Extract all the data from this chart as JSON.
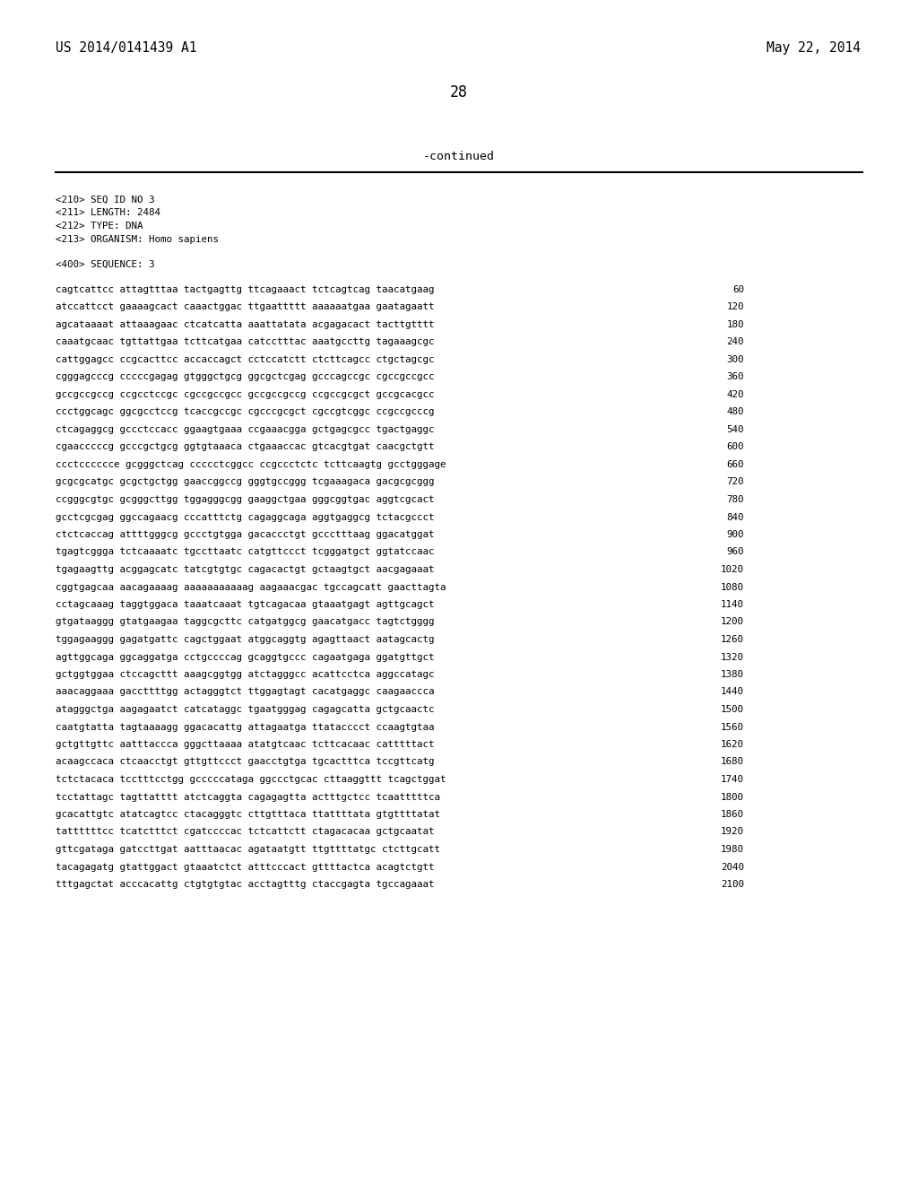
{
  "header_left": "US 2014/0141439 A1",
  "header_right": "May 22, 2014",
  "page_number": "28",
  "continued_text": "-continued",
  "metadata": [
    "<210> SEQ ID NO 3",
    "<211> LENGTH: 2484",
    "<212> TYPE: DNA",
    "<213> ORGANISM: Homo sapiens"
  ],
  "sequence_label": "<400> SEQUENCE: 3",
  "sequence_lines": [
    [
      "cagtcattcc attagtttaa tactgagttg ttcagaaact tctcagtcag taacatgaag",
      "60"
    ],
    [
      "atccattcct gaaaagcact caaactggac ttgaattttt aaaaaatgaa gaatagaatt",
      "120"
    ],
    [
      "agcataaaat attaaagaac ctcatcatta aaattatata acgagacact tacttgtttt",
      "180"
    ],
    [
      "caaatgcaac tgttattgaa tcttcatgaa catcctttac aaatgccttg tagaaagcgc",
      "240"
    ],
    [
      "cattggagcc ccgcacttcc accaccagct cctccatctt ctcttcagcc ctgctagcgc",
      "300"
    ],
    [
      "cgggagcccg cccccgagag gtgggctgcg ggcgctcgag gcccagccgc cgccgccgcc",
      "360"
    ],
    [
      "gccgccgccg ccgcctccgc cgccgccgcc gccgccgccg ccgccgcgct gccgcacgcc",
      "420"
    ],
    [
      "ccctggcagc ggcgcctccg tcaccgccgc cgcccgcgct cgccgtcggc ccgccgcccg",
      "480"
    ],
    [
      "ctcagaggcg gccctccacc ggaagtgaaa ccgaaacgga gctgagcgcc tgactgaggc",
      "540"
    ],
    [
      "cgaacccccg gcccgctgcg ggtgtaaaca ctgaaaccac gtcacgtgat caacgctgtt",
      "600"
    ],
    [
      "ccctcccccce gcgggctcag ccccctcggcc ccgccctctc tcttcaagtg gcctgggage",
      "660"
    ],
    [
      "gcgcgcatgc gcgctgctgg gaaccggccg gggtgccggg tcgaaagaca gacgcgcggg",
      "720"
    ],
    [
      "ccgggcgtgc gcgggcttgg tggagggcgg gaaggctgaa gggcggtgac aggtcgcact",
      "780"
    ],
    [
      "gcctcgcgag ggccagaacg cccatttctg cagaggcaga aggtgaggcg tctacgccct",
      "840"
    ],
    [
      "ctctcaccag attttgggcg gccctgtgga gacaccctgt gccctttaag ggacatggat",
      "900"
    ],
    [
      "tgagtcggga tctcaaaatc tgccttaatc catgttccct tcgggatgct ggtatccaac",
      "960"
    ],
    [
      "tgagaagttg acggagcatc tatcgtgtgc cagacactgt gctaagtgct aacgagaaat",
      "1020"
    ],
    [
      "cggtgagcaa aacagaaaag aaaaaaaaaaag aagaaacgac tgccagcatt gaacttagta",
      "1080"
    ],
    [
      "cctagcaaag taggtggaca taaatcaaat tgtcagacaa gtaaatgagt agttgcagct",
      "1140"
    ],
    [
      "gtgataaggg gtatgaagaa taggcgcttc catgatggcg gaacatgacc tagtctgggg",
      "1200"
    ],
    [
      "tggagaaggg gagatgattc cagctggaat atggcaggtg agagttaact aatagcactg",
      "1260"
    ],
    [
      "agttggcaga ggcaggatga cctgccccag gcaggtgccc cagaatgaga ggatgttgct",
      "1320"
    ],
    [
      "gctggtggaa ctccagcttt aaagcggtgg atctagggcc acattcctca aggccatagc",
      "1380"
    ],
    [
      "aaacaggaaa gaccttttgg actagggtct ttggagtagt cacatgaggc caagaaccca",
      "1440"
    ],
    [
      "atagggctga aagagaatct catcataggc tgaatgggag cagagcatta gctgcaactc",
      "1500"
    ],
    [
      "caatgtatta tagtaaaagg ggacacattg attagaatga ttatacccct ccaagtgtaa",
      "1560"
    ],
    [
      "gctgttgttc aatttaccca gggcttaaaa atatgtcaac tcttcacaac catttttact",
      "1620"
    ],
    [
      "acaagccaca ctcaacctgt gttgttccct gaacctgtga tgcactttca tccgttcatg",
      "1680"
    ],
    [
      "tctctacaca tcctttcctgg gcccccataga ggccctgcac cttaaggttt tcagctggat",
      "1740"
    ],
    [
      "tcctattagc tagttatttt atctcaggta cagagagtta actttgctcc tcaatttttca",
      "1800"
    ],
    [
      "gcacattgtc atatcagtcc ctacagggtc cttgtttaca ttattttata gtgttttatat",
      "1860"
    ],
    [
      "tattttttcc tcatctttct cgatccccac tctcattctt ctagacacaa gctgcaatat",
      "1920"
    ],
    [
      "gttcgataga gatccttgat aatttaacac agataatgtt ttgttttatgc ctcttgcatt",
      "1980"
    ],
    [
      "tacagagatg gtattggact gtaaatctct atttcccact gttttactca acagtctgtt",
      "2040"
    ],
    [
      "tttgagctat acccacattg ctgtgtgtac acctagtttg ctaccgagta tgccagaaat",
      "2100"
    ]
  ],
  "bg_color": "#ffffff",
  "text_color": "#000000",
  "font_size_header": 10.5,
  "font_size_body": 7.8,
  "font_size_page": 12,
  "font_size_continued": 9.5
}
